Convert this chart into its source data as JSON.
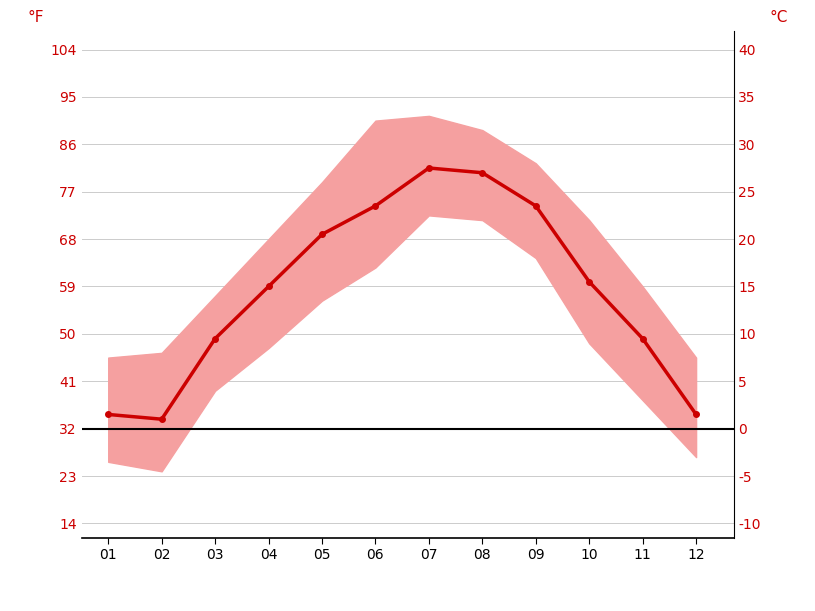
{
  "months": [
    1,
    2,
    3,
    4,
    5,
    6,
    7,
    8,
    9,
    10,
    11,
    12
  ],
  "month_labels": [
    "01",
    "02",
    "03",
    "04",
    "05",
    "06",
    "07",
    "08",
    "09",
    "10",
    "11",
    "12"
  ],
  "mean_temp_c": [
    1.5,
    1.0,
    9.5,
    15.0,
    20.5,
    23.5,
    27.5,
    27.0,
    23.5,
    15.5,
    9.5,
    1.5
  ],
  "max_temp_c": [
    7.5,
    8.0,
    14.0,
    20.0,
    26.0,
    32.5,
    33.0,
    31.5,
    28.0,
    22.0,
    15.0,
    7.5
  ],
  "min_temp_c": [
    -3.5,
    -4.5,
    4.0,
    8.5,
    13.5,
    17.0,
    22.5,
    22.0,
    18.0,
    9.0,
    3.0,
    -3.0
  ],
  "yticks_c": [
    -10,
    -5,
    0,
    5,
    10,
    15,
    20,
    25,
    30,
    35,
    40
  ],
  "yticks_f": [
    14,
    23,
    32,
    41,
    50,
    59,
    68,
    77,
    86,
    95,
    104
  ],
  "ylim_c": [
    -11.5,
    42
  ],
  "band_color": "#f5a0a0",
  "line_color": "#cc0000",
  "line_width": 2.5,
  "marker": "o",
  "marker_size": 4,
  "grid_color": "#cccccc",
  "axis_label_color": "#cc0000",
  "tick_color": "#cc0000",
  "bg_color": "#ffffff",
  "left_ylabel": "°F",
  "right_ylabel": "°C",
  "tick_fontsize": 10,
  "label_fontsize": 11
}
